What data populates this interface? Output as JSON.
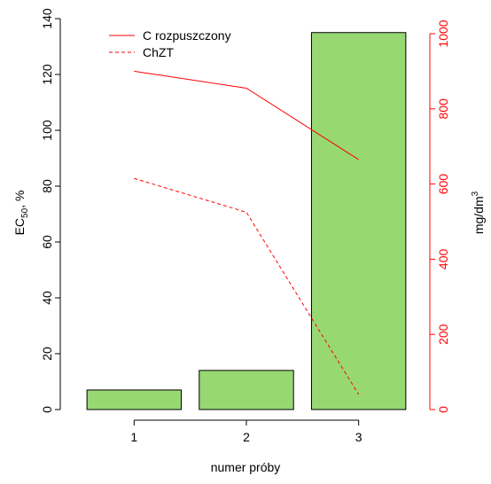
{
  "chart_data": {
    "type": "bar",
    "categories": [
      "1",
      "2",
      "3"
    ],
    "xlabel": "numer próby",
    "ylabel": "EC",
    "ylabel_sub": "50",
    "ylabel_suffix": ", %",
    "ylabel_right": "mg/dm",
    "ylabel_right_sup": "3",
    "ylim": [
      0,
      140
    ],
    "ylim_right": [
      0,
      1000
    ],
    "yticks": [
      "0",
      "20",
      "40",
      "60",
      "80",
      "100",
      "120",
      "140"
    ],
    "yticks_right": [
      "0",
      "200",
      "400",
      "600",
      "800",
      "1000"
    ],
    "bars": {
      "values": [
        7,
        14,
        135
      ],
      "color": "#98d873"
    },
    "series": [
      {
        "name": "C rozpuszczony",
        "axis": "right",
        "style": "solid",
        "x": [
          0.5,
          1.5,
          2.5
        ],
        "values": [
          900,
          855,
          665
        ],
        "color": "#ff0000"
      },
      {
        "name": "ChZT",
        "axis": "right",
        "style": "dashed",
        "x": [
          0.5,
          1.5,
          2.5
        ],
        "values": [
          615,
          525,
          40
        ],
        "color": "#ff0000"
      }
    ],
    "right_axis_color": "#ff0000",
    "legend_position": "top-left",
    "grid": false
  }
}
